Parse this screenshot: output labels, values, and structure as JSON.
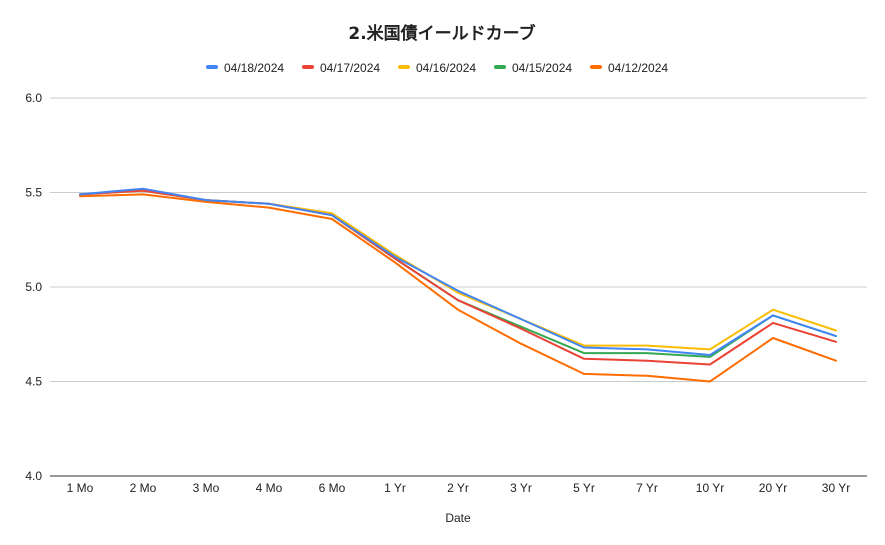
{
  "chart_data": {
    "type": "line",
    "title": "2.米国債イールドカーブ",
    "xlabel": "Date",
    "ylabel": "",
    "categories": [
      "1 Mo",
      "2 Mo",
      "3 Mo",
      "4 Mo",
      "6 Mo",
      "1 Yr",
      "2 Yr",
      "3 Yr",
      "5 Yr",
      "7 Yr",
      "10 Yr",
      "20 Yr",
      "30 Yr"
    ],
    "ylim": [
      4.0,
      6.0
    ],
    "yticks": [
      "4.0",
      "4.5",
      "5.0",
      "5.5",
      "6.0"
    ],
    "grid": true,
    "legend_position": "top",
    "series": [
      {
        "name": "04/18/2024",
        "color": "#4285f4",
        "values": [
          5.49,
          5.52,
          5.46,
          5.44,
          5.38,
          5.16,
          4.98,
          4.83,
          4.68,
          4.67,
          4.64,
          4.85,
          4.74
        ]
      },
      {
        "name": "04/17/2024",
        "color": "#ea4335",
        "values": [
          5.49,
          5.51,
          5.46,
          5.44,
          5.38,
          5.15,
          4.93,
          4.78,
          4.62,
          4.61,
          4.59,
          4.81,
          4.71
        ]
      },
      {
        "name": "04/16/2024",
        "color": "#fbbc04",
        "values": [
          5.49,
          5.51,
          5.46,
          5.44,
          5.39,
          5.17,
          4.97,
          4.83,
          4.69,
          4.69,
          4.67,
          4.88,
          4.77
        ]
      },
      {
        "name": "04/15/2024",
        "color": "#34a853",
        "values": [
          5.49,
          5.51,
          5.46,
          5.44,
          5.38,
          5.15,
          4.93,
          4.79,
          4.65,
          4.65,
          4.63,
          4.85,
          4.74
        ]
      },
      {
        "name": "04/12/2024",
        "color": "#ff6d01",
        "values": [
          5.48,
          5.49,
          5.45,
          5.42,
          5.36,
          5.13,
          4.88,
          4.7,
          4.54,
          4.53,
          4.5,
          4.73,
          4.61
        ]
      }
    ]
  }
}
